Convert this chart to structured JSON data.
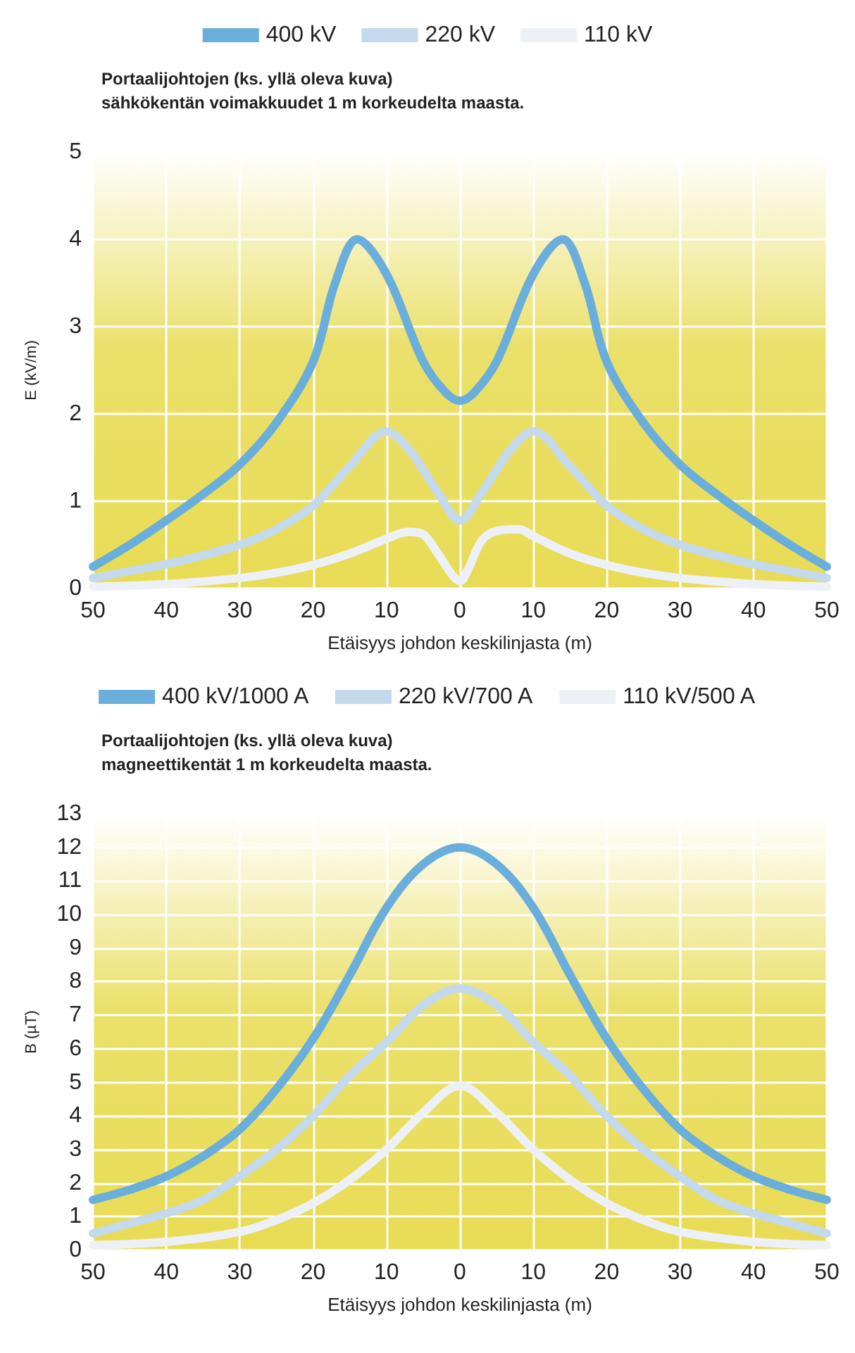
{
  "chart_data": [
    {
      "type": "line",
      "annotations": [
        "Portaalijohtojen (ks. yllä oleva kuva)",
        "sähkökentän voimakkuudet 1 m korkeudelta maasta."
      ],
      "xlabel": "Etäisyys johdon keskilinjasta (m)",
      "ylabel": "E (kV/m)",
      "xlim": [
        -50,
        50
      ],
      "xticks": [
        {
          "value": -50,
          "label": "50"
        },
        {
          "value": -40,
          "label": "40"
        },
        {
          "value": -30,
          "label": "30"
        },
        {
          "value": -20,
          "label": "20"
        },
        {
          "value": -10,
          "label": "10"
        },
        0,
        10,
        20,
        30,
        40,
        50
      ],
      "ylim": [
        0,
        5
      ],
      "yticks": [
        0,
        1,
        2,
        3,
        4,
        5
      ],
      "grid": true,
      "legend": "top",
      "marker": "none",
      "line_style": "solid",
      "series": [
        {
          "name": "400 kV",
          "color": "#6aaedc",
          "x": [
            -50,
            -45,
            -40,
            -35,
            -30,
            -25,
            -20,
            -17,
            -14,
            -10,
            -5,
            -2,
            0,
            2,
            5,
            10,
            14,
            17,
            20,
            25,
            30,
            35,
            40,
            45,
            50
          ],
          "values": [
            0.25,
            0.5,
            0.78,
            1.08,
            1.42,
            1.9,
            2.6,
            3.5,
            4.0,
            3.6,
            2.6,
            2.25,
            2.15,
            2.25,
            2.6,
            3.6,
            4.0,
            3.5,
            2.6,
            1.9,
            1.42,
            1.08,
            0.78,
            0.5,
            0.25
          ]
        },
        {
          "name": "220 kV",
          "color": "#c4d9ec",
          "x": [
            -50,
            -45,
            -40,
            -35,
            -30,
            -25,
            -20,
            -15,
            -10,
            -7,
            -3,
            0,
            3,
            7,
            10,
            15,
            20,
            25,
            30,
            35,
            40,
            45,
            50
          ],
          "values": [
            0.12,
            0.2,
            0.28,
            0.38,
            0.5,
            0.68,
            0.95,
            1.4,
            1.8,
            1.6,
            1.1,
            0.78,
            1.1,
            1.6,
            1.8,
            1.4,
            0.95,
            0.68,
            0.5,
            0.38,
            0.28,
            0.2,
            0.12
          ]
        },
        {
          "name": "110 kV",
          "color": "#edf1f7",
          "x": [
            -50,
            -40,
            -30,
            -25,
            -20,
            -15,
            -10,
            -7,
            -5,
            -3,
            -1,
            0,
            1,
            3,
            5,
            8,
            10,
            15,
            20,
            25,
            30,
            40,
            50
          ],
          "values": [
            0.02,
            0.05,
            0.12,
            0.18,
            0.27,
            0.4,
            0.57,
            0.65,
            0.62,
            0.4,
            0.15,
            0.08,
            0.2,
            0.55,
            0.66,
            0.68,
            0.6,
            0.4,
            0.27,
            0.18,
            0.12,
            0.05,
            0.02
          ]
        }
      ]
    },
    {
      "type": "line",
      "annotations": [
        "Portaalijohtojen (ks. yllä oleva kuva)",
        "magneettikentät 1 m korkeudelta maasta."
      ],
      "xlabel": "Etäisyys johdon keskilinjasta (m)",
      "ylabel": "B (µT)",
      "xlim": [
        -50,
        50
      ],
      "xticks": [
        {
          "value": -50,
          "label": "50"
        },
        {
          "value": -40,
          "label": "40"
        },
        {
          "value": -30,
          "label": "30"
        },
        {
          "value": -20,
          "label": "20"
        },
        {
          "value": -10,
          "label": "10"
        },
        0,
        10,
        20,
        30,
        40,
        50
      ],
      "ylim": [
        0,
        13
      ],
      "yticks": [
        0,
        1,
        2,
        3,
        4,
        5,
        6,
        7,
        8,
        9,
        10,
        11,
        12,
        13
      ],
      "grid": true,
      "legend": "top",
      "marker": "none",
      "line_style": "solid",
      "series": [
        {
          "name": "400 kV/1000 A",
          "color": "#6aaedc",
          "x": [
            -50,
            -45,
            -40,
            -35,
            -30,
            -25,
            -20,
            -15,
            -10,
            -5,
            0,
            5,
            10,
            15,
            20,
            25,
            30,
            35,
            40,
            45,
            50
          ],
          "values": [
            1.5,
            1.8,
            2.2,
            2.8,
            3.6,
            4.8,
            6.3,
            8.2,
            10.2,
            11.5,
            12.0,
            11.5,
            10.2,
            8.2,
            6.3,
            4.8,
            3.6,
            2.8,
            2.2,
            1.8,
            1.5
          ]
        },
        {
          "name": "220 kV/700 A",
          "color": "#c4d9ec",
          "x": [
            -50,
            -45,
            -40,
            -35,
            -30,
            -25,
            -20,
            -15,
            -10,
            -5,
            0,
            5,
            10,
            15,
            20,
            25,
            30,
            35,
            40,
            45,
            50
          ],
          "values": [
            0.5,
            0.8,
            1.1,
            1.5,
            2.2,
            3.0,
            4.0,
            5.2,
            6.2,
            7.3,
            7.8,
            7.3,
            6.2,
            5.2,
            4.0,
            3.0,
            2.2,
            1.5,
            1.1,
            0.8,
            0.5
          ]
        },
        {
          "name": "110 kV/500 A",
          "color": "#edf1f7",
          "x": [
            -50,
            -40,
            -30,
            -25,
            -20,
            -15,
            -10,
            -5,
            0,
            5,
            10,
            15,
            20,
            25,
            30,
            40,
            50
          ],
          "values": [
            0.15,
            0.25,
            0.55,
            0.9,
            1.4,
            2.1,
            3.0,
            4.1,
            4.9,
            4.1,
            3.0,
            2.1,
            1.4,
            0.9,
            0.55,
            0.25,
            0.15
          ]
        }
      ]
    }
  ]
}
